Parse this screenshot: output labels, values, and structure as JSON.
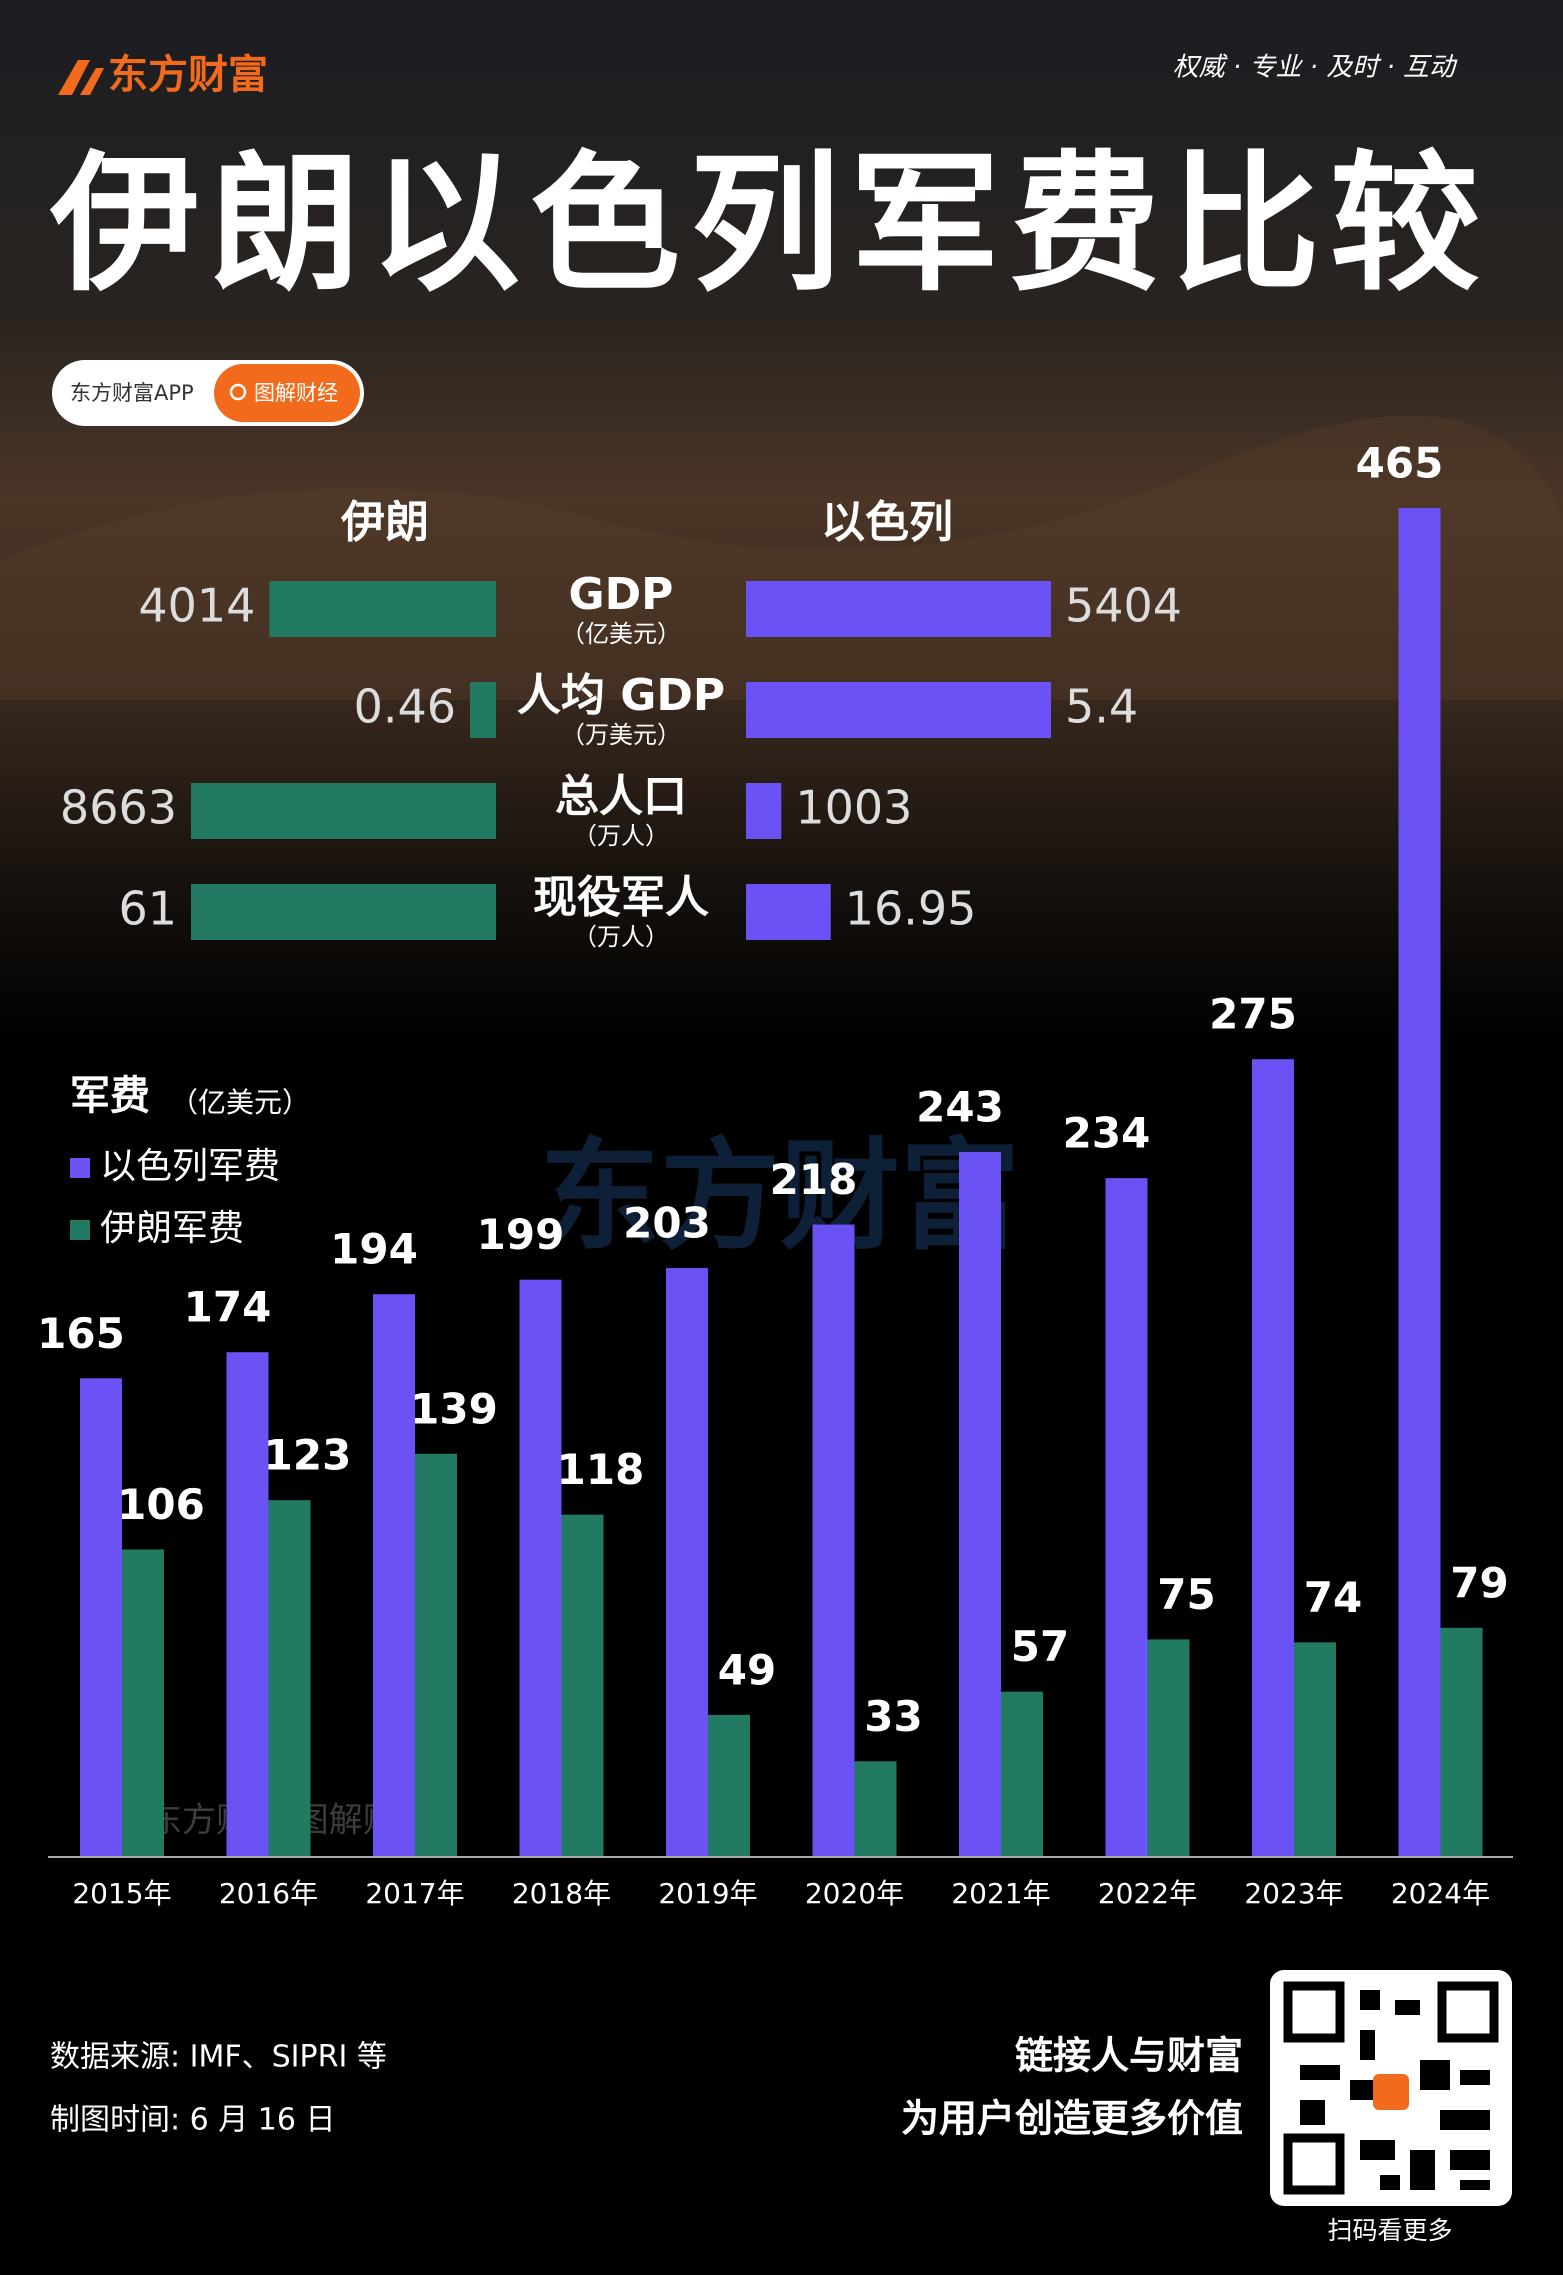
{
  "header": {
    "logo": "东方财富",
    "tagline": "权威 · 专业 · 及时 · 互动",
    "title": "伊朗以色列军费比较",
    "app": "东方财富APP",
    "search": "图解财经"
  },
  "chart_data": [
    {
      "type": "comparison",
      "categories": [
        "GDP",
        "人均 GDP",
        "总人口",
        "现役军人"
      ],
      "units": [
        "（亿美元）",
        "（万美元）",
        "（万人）",
        "（万人）"
      ],
      "series": [
        {
          "name": "伊朗",
          "color": "#237a62",
          "values": [
            4014,
            0.46,
            8663,
            61
          ]
        },
        {
          "name": "以色列",
          "color": "#6b52f5",
          "values": [
            5404,
            5.4,
            1003,
            16.95
          ]
        }
      ]
    },
    {
      "type": "bar",
      "title": "军费",
      "unit": "（亿美元）",
      "categories": [
        "2015年",
        "2016年",
        "2017年",
        "2018年",
        "2019年",
        "2020年",
        "2021年",
        "2022年",
        "2023年",
        "2024年"
      ],
      "series": [
        {
          "name": "以色列军费",
          "color": "#6b52f5",
          "values": [
            165,
            174,
            194,
            199,
            203,
            218,
            243,
            234,
            275,
            465
          ]
        },
        {
          "name": "伊朗军费",
          "color": "#237a62",
          "values": [
            106,
            123,
            139,
            118,
            49,
            33,
            57,
            75,
            74,
            79
          ]
        }
      ],
      "ylim": [
        0,
        465
      ]
    }
  ],
  "watermarks": [
    "东方财富",
    "东方财富 图解财经"
  ],
  "footer": {
    "source": "数据来源: IMF、SIPRI 等",
    "date": "制图时间: 6 月 16 日",
    "slogan": [
      "链接人与财富",
      "为用户创造更多价值"
    ],
    "qr": "扫码看更多"
  }
}
